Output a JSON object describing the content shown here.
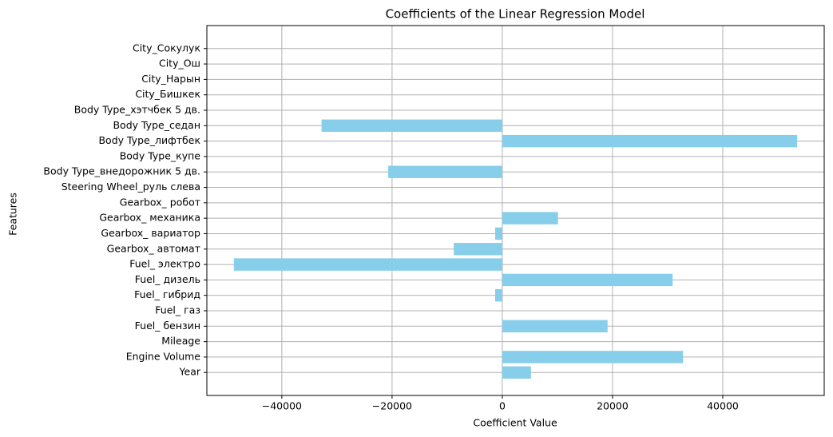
{
  "chart_data": {
    "type": "barh",
    "title": "Coefficients of the Linear Regression Model",
    "xlabel": "Coefficient Value",
    "ylabel": "Features",
    "categories": [
      "Year",
      "Engine Volume",
      "Mileage",
      "Fuel_ бензин",
      "Fuel_ газ",
      "Fuel_ гибрид",
      "Fuel_ дизель",
      "Fuel_ электро",
      "Gearbox_ автомат",
      "Gearbox_ вариатор",
      "Gearbox_ механика",
      "Gearbox_ робот",
      "Steering Wheel_руль слева",
      "Body Type_внедорожник 5 дв.",
      "Body Type_купе",
      "Body Type_лифтбек",
      "Body Type_седан",
      "Body Type_хэтчбек 5 дв.",
      "City_Бишкек",
      "City_Нарын",
      "City_Ош",
      "City_Сокулук"
    ],
    "values": [
      5200,
      32800,
      0,
      19100,
      0,
      -1300,
      30900,
      -48700,
      -8800,
      -1300,
      10100,
      0,
      0,
      -20700,
      0,
      53500,
      -32800,
      0,
      0,
      0,
      0,
      0
    ],
    "color": "#87ceeb",
    "xlim": [
      -53600,
      58400
    ],
    "xticks": [
      {
        "value": -40000,
        "label": "−40000"
      },
      {
        "value": -20000,
        "label": "−20000"
      },
      0,
      20000,
      40000
    ],
    "grid": true
  }
}
